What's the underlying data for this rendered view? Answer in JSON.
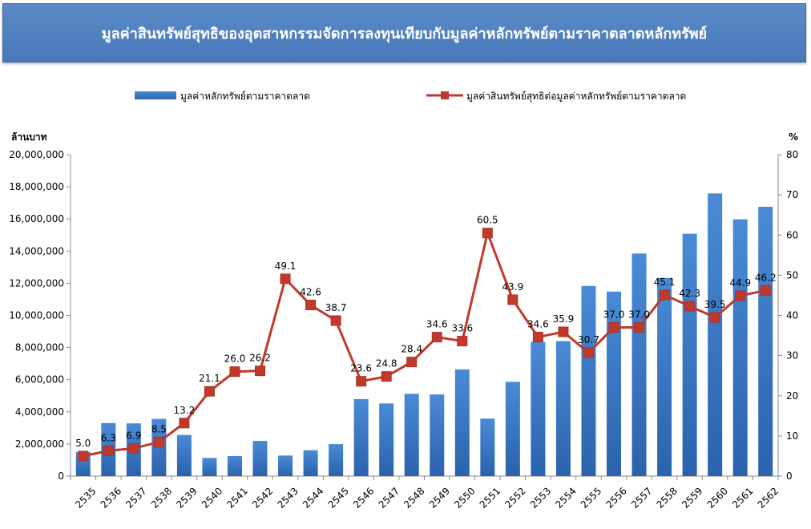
{
  "title": "มูลค่าสินทรัพย์สุทธิของอุตสาหกรรมจัดการลงทุนเทียบกับมูลค่าหลักทรัพย์ตามราคาตลาดหลักทรัพย์",
  "chart_data": {
    "type": "bar+line",
    "title": "มูลค่าสินทรัพย์สุทธิของอุตสาหกรรมจัดการลงทุนเทียบกับมูลค่าหลักทรัพย์ตามราคาตลาดหลักทรัพย์",
    "categories": [
      "2535",
      "2536",
      "2537",
      "2538",
      "2539",
      "2540",
      "2541",
      "2542",
      "2543",
      "2544",
      "2545",
      "2546",
      "2547",
      "2548",
      "2549",
      "2550",
      "2551",
      "2552",
      "2553",
      "2554",
      "2555",
      "2556",
      "2557",
      "2558",
      "2559",
      "2560",
      "2561",
      "2562"
    ],
    "series": [
      {
        "name": "มูลค่าหลักทรัพย์ตามราคาตลาด",
        "type": "bar",
        "axis": "left",
        "color": "#3a77c3",
        "values": [
          1500000,
          3300000,
          3280000,
          3560000,
          2560000,
          1130000,
          1250000,
          2190000,
          1280000,
          1610000,
          1990000,
          4790000,
          4520000,
          5120000,
          5080000,
          6640000,
          3580000,
          5870000,
          8350000,
          8400000,
          11830000,
          11480000,
          13850000,
          12330000,
          15080000,
          17590000,
          15980000,
          16760000
        ]
      },
      {
        "name": "มูลค่าสินทรัพย์สุทธิต่อมูลค่าหลักทรัพย์ตามราคาตลาด",
        "type": "line",
        "axis": "right",
        "color": "#c0392b",
        "values": [
          5.0,
          6.3,
          6.9,
          8.5,
          13.2,
          21.1,
          26.0,
          26.2,
          49.1,
          42.6,
          38.7,
          23.6,
          24.8,
          28.4,
          34.6,
          33.6,
          60.5,
          43.9,
          34.6,
          35.9,
          30.7,
          37.0,
          37.0,
          45.1,
          42.3,
          39.5,
          44.9,
          46.2
        ],
        "labels": [
          "5.0",
          "6.3",
          "6.9",
          "8.5",
          "13.2",
          "21.1",
          "26.0",
          "26.2",
          "49.1",
          "42.6",
          "38.7",
          "23.6",
          "24.8",
          "28.4",
          "34.6",
          "33.6",
          "60.5",
          "43.9",
          "34.6",
          "35.9",
          "30.7",
          "37.0",
          "37.0",
          "45.1",
          "42.3",
          "39.5",
          "44.9",
          "46.2"
        ]
      }
    ],
    "y_left": {
      "label": "ล้านบาท",
      "range": [
        0,
        20000000
      ],
      "ticks": [
        0,
        2000000,
        4000000,
        6000000,
        8000000,
        10000000,
        12000000,
        14000000,
        16000000,
        18000000,
        20000000
      ],
      "tick_labels": [
        "0",
        "2,000,000",
        "4,000,000",
        "6,000,000",
        "8,000,000",
        "10,000,000",
        "12,000,000",
        "14,000,000",
        "16,000,000",
        "18,000,000",
        "20,000,000"
      ]
    },
    "y_right": {
      "label": "%",
      "range": [
        0,
        80
      ],
      "ticks": [
        0,
        10,
        20,
        30,
        40,
        50,
        60,
        70,
        80
      ],
      "tick_labels": [
        "0",
        "10",
        "20",
        "30",
        "40",
        "50",
        "60",
        "70",
        "80"
      ]
    },
    "legend": "top",
    "grid": false
  }
}
